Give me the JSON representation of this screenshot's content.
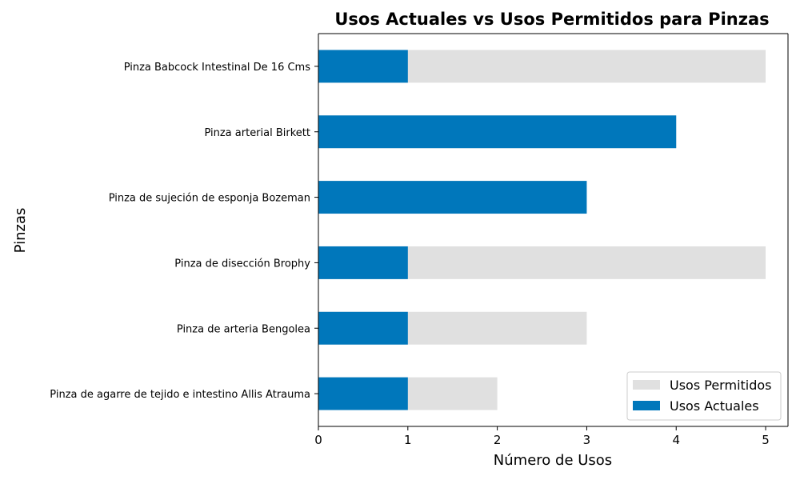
{
  "chart_data": {
    "type": "bar",
    "orientation": "horizontal",
    "stacked": false,
    "overlay": true,
    "title": "Usos Actuales vs Usos Permitidos para Pinzas",
    "xlabel": "Número de Usos",
    "ylabel": "Pinzas",
    "xlim": [
      0,
      5.25
    ],
    "xticks": [
      0,
      1,
      2,
      3,
      4,
      5
    ],
    "categories": [
      "Pinza de agarre de tejido e intestino Allis Atrauma",
      "Pinza de arteria Bengolea",
      "Pinza de disección Brophy",
      "Pinza de sujeción de esponja Bozeman",
      "Pinza arterial Birkett",
      "Pinza Babcock Intestinal De 16 Cms"
    ],
    "series": [
      {
        "name": "Usos Permitidos",
        "color": "#e0e0e0",
        "values": [
          2,
          3,
          5,
          3,
          4,
          5
        ]
      },
      {
        "name": "Usos Actuales",
        "color": "#0077bb",
        "values": [
          1,
          1,
          1,
          3,
          4,
          1
        ]
      }
    ],
    "legend": {
      "placement": "lower-right"
    },
    "grid": false
  }
}
